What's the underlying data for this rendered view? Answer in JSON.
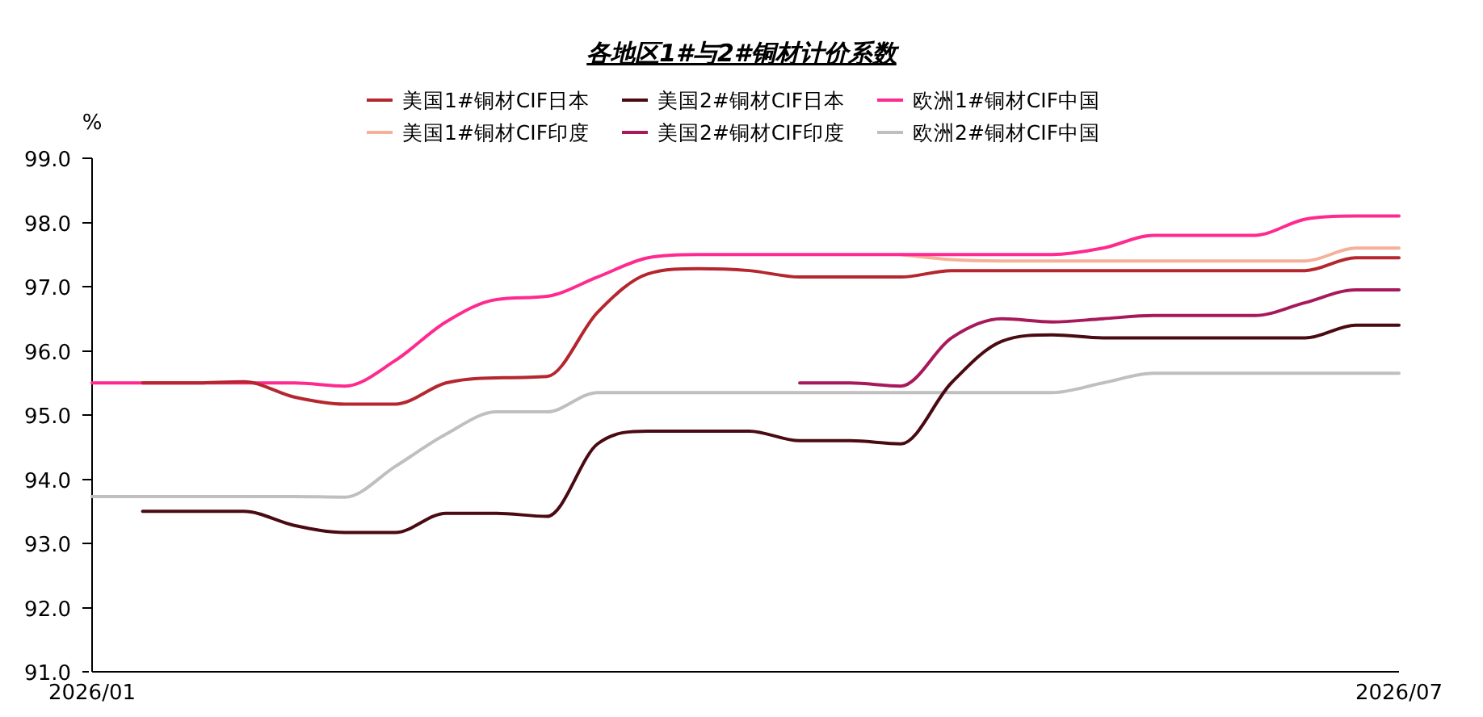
{
  "chart_data": {
    "type": "line",
    "title": "各地区1#与2#铜材计价系数",
    "ylabel": "%",
    "x": [
      "2026-01-01",
      "2026-01-08",
      "2026-01-15",
      "2026-01-22",
      "2026-01-29",
      "2026-02-05",
      "2026-02-12",
      "2026-02-19",
      "2026-02-26",
      "2026-03-05",
      "2026-03-12",
      "2026-03-19",
      "2026-03-26",
      "2026-04-02",
      "2026-04-09",
      "2026-04-16",
      "2026-04-23",
      "2026-04-30",
      "2026-05-07",
      "2026-05-14",
      "2026-05-21",
      "2026-05-28",
      "2026-06-04",
      "2026-06-11",
      "2026-06-18",
      "2026-06-25",
      "2026-07-01"
    ],
    "series": [
      {
        "name": "美国1#铜材CIF日本",
        "color": "#b5262e",
        "values": [
          null,
          95.5,
          95.5,
          95.52,
          95.28,
          95.17,
          95.17,
          95.5,
          95.58,
          95.6,
          96.6,
          97.2,
          97.28,
          97.25,
          97.15,
          97.15,
          97.15,
          97.25,
          97.25,
          97.25,
          97.25,
          97.25,
          97.25,
          97.25,
          97.25,
          97.45,
          97.45
        ]
      },
      {
        "name": "美国2#铜材CIF日本",
        "color": "#4a0a12",
        "values": [
          null,
          93.5,
          93.5,
          93.5,
          93.28,
          93.17,
          93.17,
          93.47,
          93.47,
          93.42,
          94.55,
          94.75,
          94.75,
          94.75,
          94.6,
          94.6,
          94.55,
          95.5,
          96.15,
          96.25,
          96.2,
          96.2,
          96.2,
          96.2,
          96.2,
          96.4,
          96.4
        ]
      },
      {
        "name": "欧洲1#铜材CIF中国",
        "color": "#ff2a8f",
        "values": [
          95.5,
          95.5,
          95.5,
          95.5,
          95.5,
          95.45,
          95.85,
          96.45,
          96.8,
          96.85,
          97.15,
          97.45,
          97.5,
          97.5,
          97.5,
          97.5,
          97.5,
          97.5,
          97.5,
          97.5,
          97.6,
          97.8,
          97.8,
          97.8,
          98.05,
          98.1,
          98.1
        ]
      },
      {
        "name": "美国1#铜材CIF印度",
        "color": "#f5b09a",
        "values": [
          null,
          null,
          null,
          null,
          null,
          null,
          null,
          null,
          null,
          null,
          null,
          null,
          null,
          null,
          null,
          null,
          97.5,
          97.42,
          97.4,
          97.4,
          97.4,
          97.4,
          97.4,
          97.4,
          97.4,
          97.6,
          97.6
        ]
      },
      {
        "name": "美国2#铜材CIF印度",
        "color": "#a8195c",
        "values": [
          null,
          null,
          null,
          null,
          null,
          null,
          null,
          null,
          null,
          null,
          null,
          null,
          null,
          null,
          95.5,
          95.5,
          95.45,
          96.2,
          96.5,
          96.45,
          96.5,
          96.55,
          96.55,
          96.55,
          96.75,
          96.95,
          96.95
        ]
      },
      {
        "name": "欧洲2#铜材CIF中国",
        "color": "#bfbfbf",
        "values": [
          93.73,
          93.73,
          93.73,
          93.73,
          93.73,
          93.72,
          94.2,
          94.7,
          95.05,
          95.05,
          95.35,
          95.35,
          95.35,
          95.35,
          95.35,
          95.35,
          95.35,
          95.35,
          95.35,
          95.35,
          95.5,
          95.65,
          95.65,
          95.65,
          95.65,
          95.65,
          95.65
        ]
      }
    ],
    "xlim": [
      "2026-01-01",
      "2026-07-01"
    ],
    "xticks": [
      {
        "value": "2026-01-01",
        "label": "2026/01"
      },
      {
        "value": "2026-07-01",
        "label": "2026/07"
      }
    ],
    "ylim": [
      91,
      99
    ],
    "yticks": [
      {
        "value": 91,
        "label": "91.0"
      },
      {
        "value": 92,
        "label": "92.0"
      },
      {
        "value": 93,
        "label": "93.0"
      },
      {
        "value": 94,
        "label": "94.0"
      },
      {
        "value": 95,
        "label": "95.0"
      },
      {
        "value": 96,
        "label": "96.0"
      },
      {
        "value": 97,
        "label": "97.0"
      },
      {
        "value": 98,
        "label": "98.0"
      },
      {
        "value": 99,
        "label": "99.0"
      }
    ],
    "grid": false,
    "legend": "top",
    "marker": "none",
    "line_style": "solid"
  }
}
